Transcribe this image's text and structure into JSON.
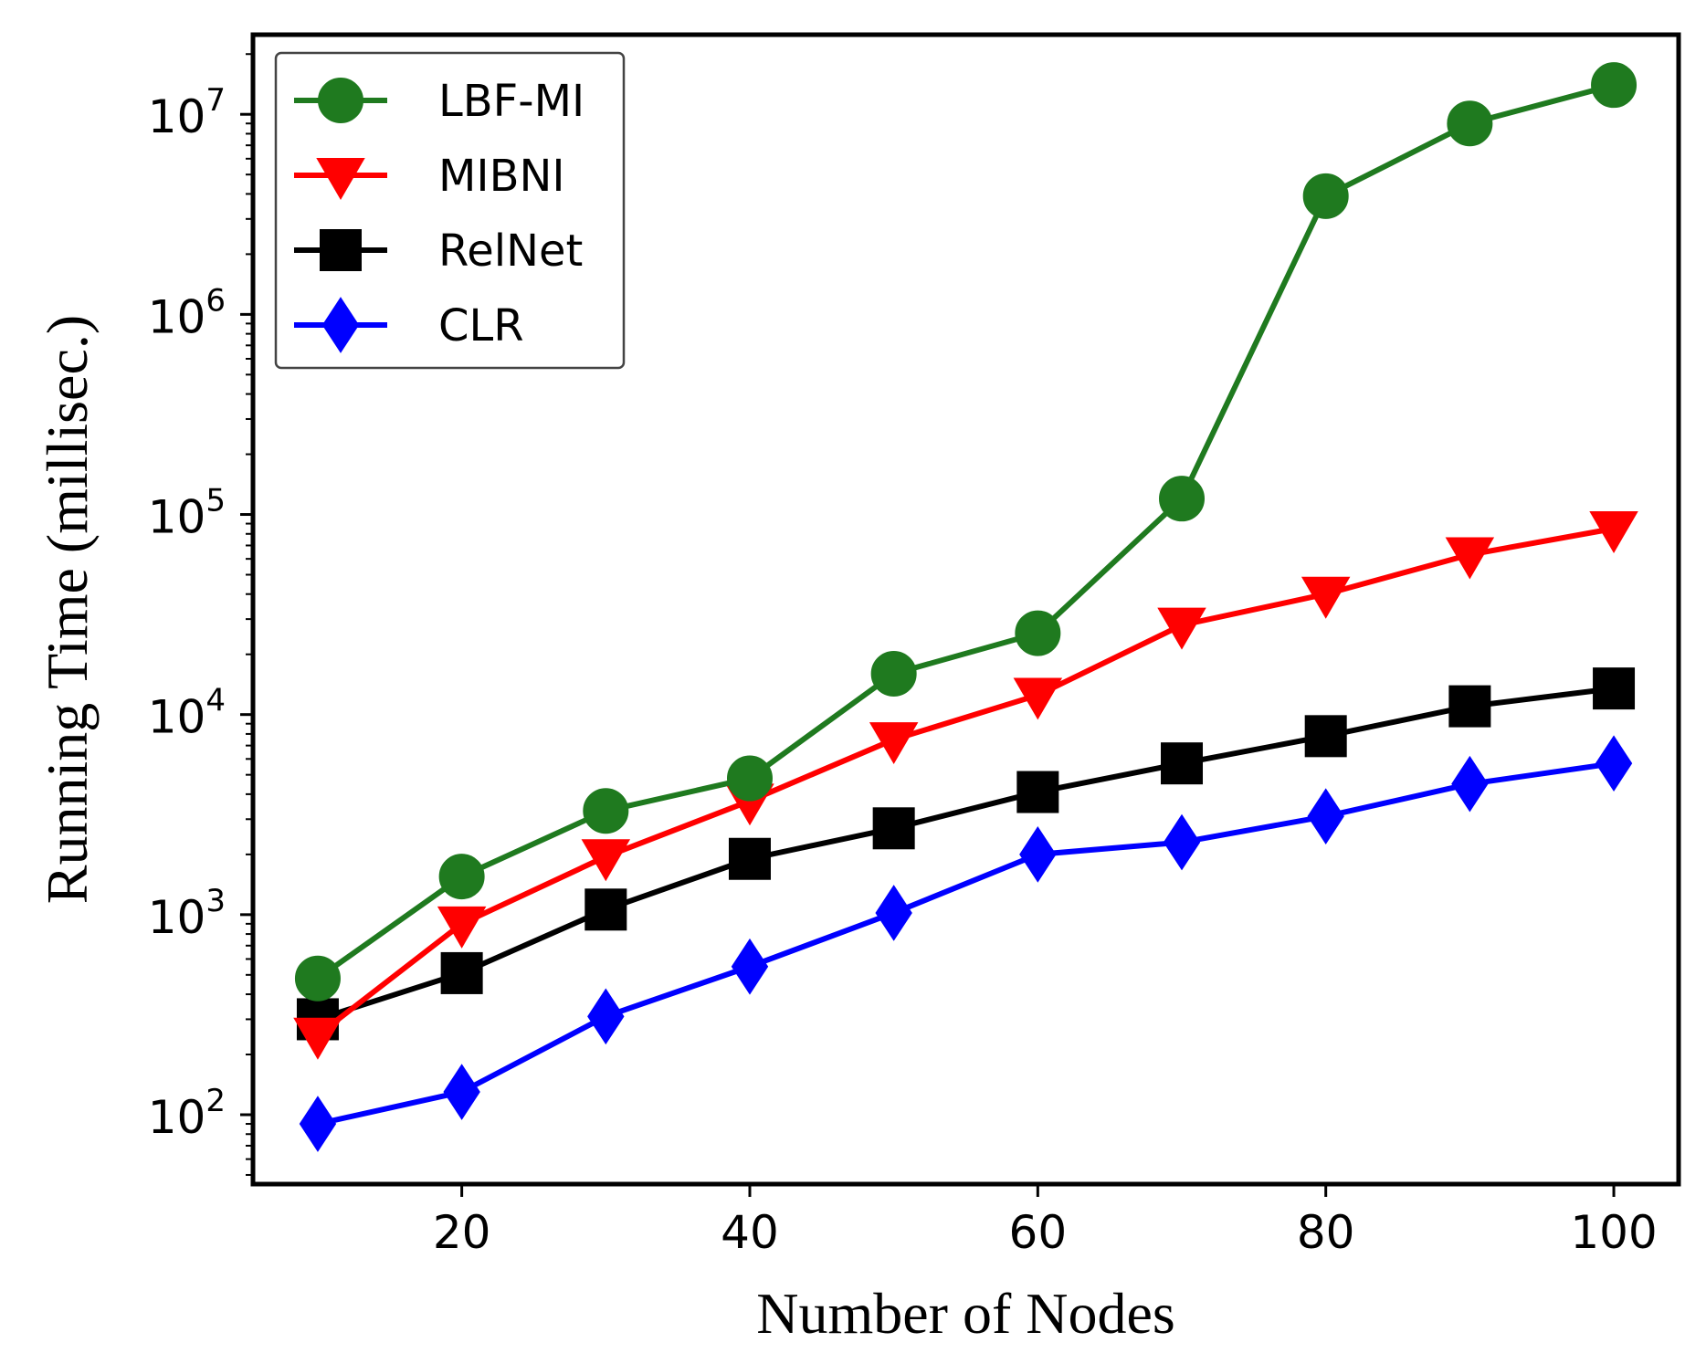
{
  "chart_data": {
    "type": "line",
    "title": "",
    "xlabel": "Number of Nodes",
    "ylabel": "Running Time (millisec.)",
    "yscale": "log",
    "xlim": [
      5.5,
      104.5
    ],
    "ylim": [
      45,
      25000000
    ],
    "x_ticks": [
      {
        "value": 20,
        "label": "20"
      },
      {
        "value": 40,
        "label": "40"
      },
      {
        "value": 60,
        "label": "60"
      },
      {
        "value": 80,
        "label": "80"
      },
      {
        "value": 100,
        "label": "100"
      }
    ],
    "y_ticks": [
      {
        "value": 100,
        "base": "10",
        "exp": "2"
      },
      {
        "value": 1000,
        "base": "10",
        "exp": "3"
      },
      {
        "value": 10000,
        "base": "10",
        "exp": "4"
      },
      {
        "value": 100000,
        "base": "10",
        "exp": "5"
      },
      {
        "value": 1000000,
        "base": "10",
        "exp": "6"
      },
      {
        "value": 10000000,
        "base": "10",
        "exp": "7"
      }
    ],
    "x": [
      10,
      20,
      30,
      40,
      50,
      60,
      70,
      80,
      90,
      100
    ],
    "legend_position": "top-left",
    "series": [
      {
        "name": "LBF-MI",
        "color": "#1f7a1f",
        "marker": "circle",
        "values": [
          480,
          1550,
          3300,
          4800,
          16000,
          25500,
          120000,
          3900000,
          9000000,
          14000000
        ]
      },
      {
        "name": "MIBNI",
        "color": "#ff0000",
        "marker": "triangle-down",
        "values": [
          250,
          900,
          1950,
          3700,
          7500,
          12500,
          28000,
          40000,
          63000,
          85000
        ]
      },
      {
        "name": "RelNet",
        "color": "#000000",
        "marker": "square",
        "values": [
          300,
          510,
          1060,
          1900,
          2700,
          4100,
          5700,
          7800,
          11000,
          13500
        ]
      },
      {
        "name": "CLR",
        "color": "#0000ff",
        "marker": "diamond",
        "values": [
          90,
          130,
          310,
          550,
          1020,
          2000,
          2300,
          3100,
          4500,
          5700
        ]
      }
    ]
  }
}
